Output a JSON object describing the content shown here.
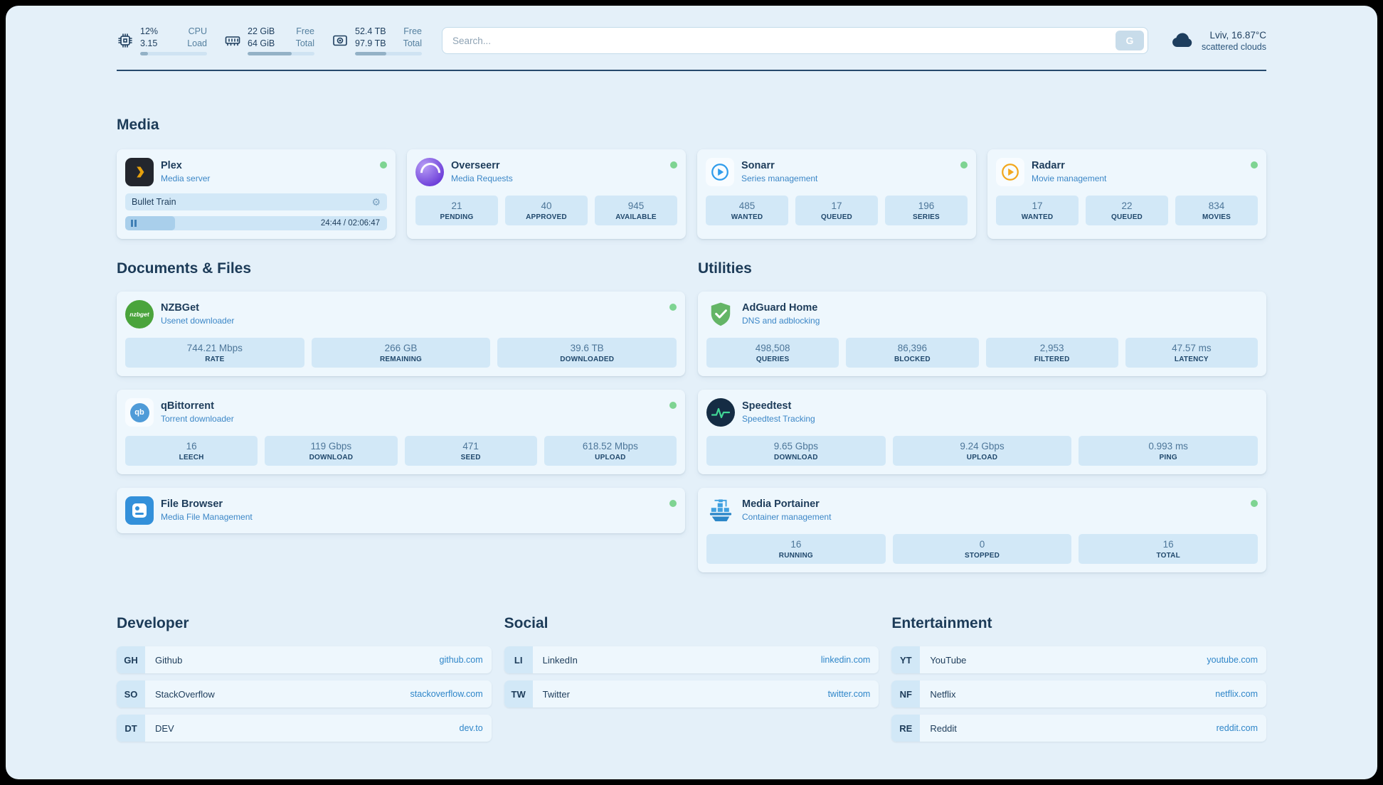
{
  "topbar": {
    "resources": [
      {
        "value1": "12%",
        "label1": "CPU",
        "value2": "3.15",
        "label2": "Load",
        "progress": 12
      },
      {
        "value1": "22 GiB",
        "label1": "Free",
        "value2": "64 GiB",
        "label2": "Total",
        "progress": 66
      },
      {
        "value1": "52.4 TB",
        "label1": "Free",
        "value2": "97.9 TB",
        "label2": "Total",
        "progress": 47
      }
    ],
    "search": {
      "placeholder": "Search...",
      "button_label": "G"
    },
    "weather": {
      "location": "Lviv, 16.87°C",
      "condition": "scattered clouds"
    }
  },
  "icons": {
    "nzbget": "nzbget",
    "qbittorrent": "qb"
  },
  "sections": {
    "media": {
      "title": "Media",
      "plex": {
        "name": "Plex",
        "subtitle": "Media server",
        "now_playing": "Bullet Train",
        "time": "24:44 / 02:06:47",
        "progress": 19
      },
      "overseerr": {
        "name": "Overseerr",
        "subtitle": "Media Requests",
        "stats": [
          {
            "value": "21",
            "label": "PENDING"
          },
          {
            "value": "40",
            "label": "APPROVED"
          },
          {
            "value": "945",
            "label": "AVAILABLE"
          }
        ]
      },
      "sonarr": {
        "name": "Sonarr",
        "subtitle": "Series management",
        "stats": [
          {
            "value": "485",
            "label": "WANTED"
          },
          {
            "value": "17",
            "label": "QUEUED"
          },
          {
            "value": "196",
            "label": "SERIES"
          }
        ]
      },
      "radarr": {
        "name": "Radarr",
        "subtitle": "Movie management",
        "stats": [
          {
            "value": "17",
            "label": "WANTED"
          },
          {
            "value": "22",
            "label": "QUEUED"
          },
          {
            "value": "834",
            "label": "MOVIES"
          }
        ]
      }
    },
    "documents": {
      "title": "Documents & Files",
      "nzbget": {
        "name": "NZBGet",
        "subtitle": "Usenet downloader",
        "stats": [
          {
            "value": "744.21 Mbps",
            "label": "RATE"
          },
          {
            "value": "266 GB",
            "label": "REMAINING"
          },
          {
            "value": "39.6 TB",
            "label": "DOWNLOADED"
          }
        ]
      },
      "qbittorrent": {
        "name": "qBittorrent",
        "subtitle": "Torrent downloader",
        "stats": [
          {
            "value": "16",
            "label": "LEECH"
          },
          {
            "value": "119 Gbps",
            "label": "DOWNLOAD"
          },
          {
            "value": "471",
            "label": "SEED"
          },
          {
            "value": "618.52 Mbps",
            "label": "UPLOAD"
          }
        ]
      },
      "filebrowser": {
        "name": "File Browser",
        "subtitle": "Media File Management"
      }
    },
    "utilities": {
      "title": "Utilities",
      "adguard": {
        "name": "AdGuard Home",
        "subtitle": "DNS and adblocking",
        "stats": [
          {
            "value": "498,508",
            "label": "QUERIES"
          },
          {
            "value": "86,396",
            "label": "BLOCKED"
          },
          {
            "value": "2,953",
            "label": "FILTERED"
          },
          {
            "value": "47.57 ms",
            "label": "LATENCY"
          }
        ]
      },
      "speedtest": {
        "name": "Speedtest",
        "subtitle": "Speedtest Tracking",
        "stats": [
          {
            "value": "9.65 Gbps",
            "label": "DOWNLOAD"
          },
          {
            "value": "9.24 Gbps",
            "label": "UPLOAD"
          },
          {
            "value": "0.993 ms",
            "label": "PING"
          }
        ]
      },
      "portainer": {
        "name": "Media Portainer",
        "subtitle": "Container management",
        "stats": [
          {
            "value": "16",
            "label": "RUNNING"
          },
          {
            "value": "0",
            "label": "STOPPED"
          },
          {
            "value": "16",
            "label": "TOTAL"
          }
        ]
      }
    },
    "bookmarks": {
      "developer": {
        "title": "Developer",
        "items": [
          {
            "abbr": "GH",
            "name": "Github",
            "href": "github.com"
          },
          {
            "abbr": "SO",
            "name": "StackOverflow",
            "href": "stackoverflow.com"
          },
          {
            "abbr": "DT",
            "name": "DEV",
            "href": "dev.to"
          }
        ]
      },
      "social": {
        "title": "Social",
        "items": [
          {
            "abbr": "LI",
            "name": "LinkedIn",
            "href": "linkedin.com"
          },
          {
            "abbr": "TW",
            "name": "Twitter",
            "href": "twitter.com"
          }
        ]
      },
      "entertainment": {
        "title": "Entertainment",
        "items": [
          {
            "abbr": "YT",
            "name": "YouTube",
            "href": "youtube.com"
          },
          {
            "abbr": "NF",
            "name": "Netflix",
            "href": "netflix.com"
          },
          {
            "abbr": "RE",
            "name": "Reddit",
            "href": "reddit.com"
          }
        ]
      }
    }
  },
  "colors": {
    "accent_blue": "#2f86c9",
    "status_green": "#7ed492",
    "page_bg": "#e4f0f9"
  }
}
